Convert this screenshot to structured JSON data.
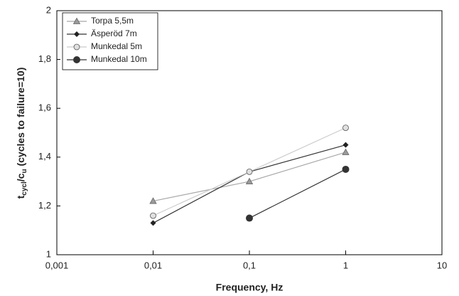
{
  "chart_data": {
    "type": "line",
    "x_label": "Frequency, Hz",
    "y_label_parts": [
      "t",
      "cycl",
      "/c",
      "u",
      " (cycles to failure=10)"
    ],
    "x": [
      0.01,
      0.1,
      1
    ],
    "xlim": [
      0.001,
      10
    ],
    "x_log": true,
    "xticks": [
      {
        "value": 0.001,
        "label": "0,001"
      },
      {
        "value": 0.01,
        "label": "0,01"
      },
      {
        "value": 0.1,
        "label": "0,1"
      },
      1,
      10
    ],
    "ylim": [
      1,
      2
    ],
    "yticks": [
      1,
      {
        "value": 1.2,
        "label": "1,2"
      },
      {
        "value": 1.4,
        "label": "1,4"
      },
      {
        "value": 1.6,
        "label": "1,6"
      },
      {
        "value": 1.8,
        "label": "1,8"
      },
      2
    ],
    "legend": "top-left",
    "series": [
      {
        "name": "Torpa 5,5m",
        "color": "#a8a8a8",
        "marker": "triangle",
        "values": [
          1.22,
          1.3,
          1.42
        ]
      },
      {
        "name": "Äsperöd 7m",
        "color": "#333333",
        "marker": "diamond",
        "values": [
          1.13,
          1.34,
          1.45
        ]
      },
      {
        "name": "Munkedal 5m",
        "color": "#cccccc",
        "marker": "circle",
        "values": [
          1.16,
          1.34,
          1.52
        ]
      },
      {
        "name": "Munkedal 10m",
        "color": "#333333",
        "marker": "big-circle",
        "values": [
          null,
          1.15,
          1.35
        ]
      }
    ]
  }
}
